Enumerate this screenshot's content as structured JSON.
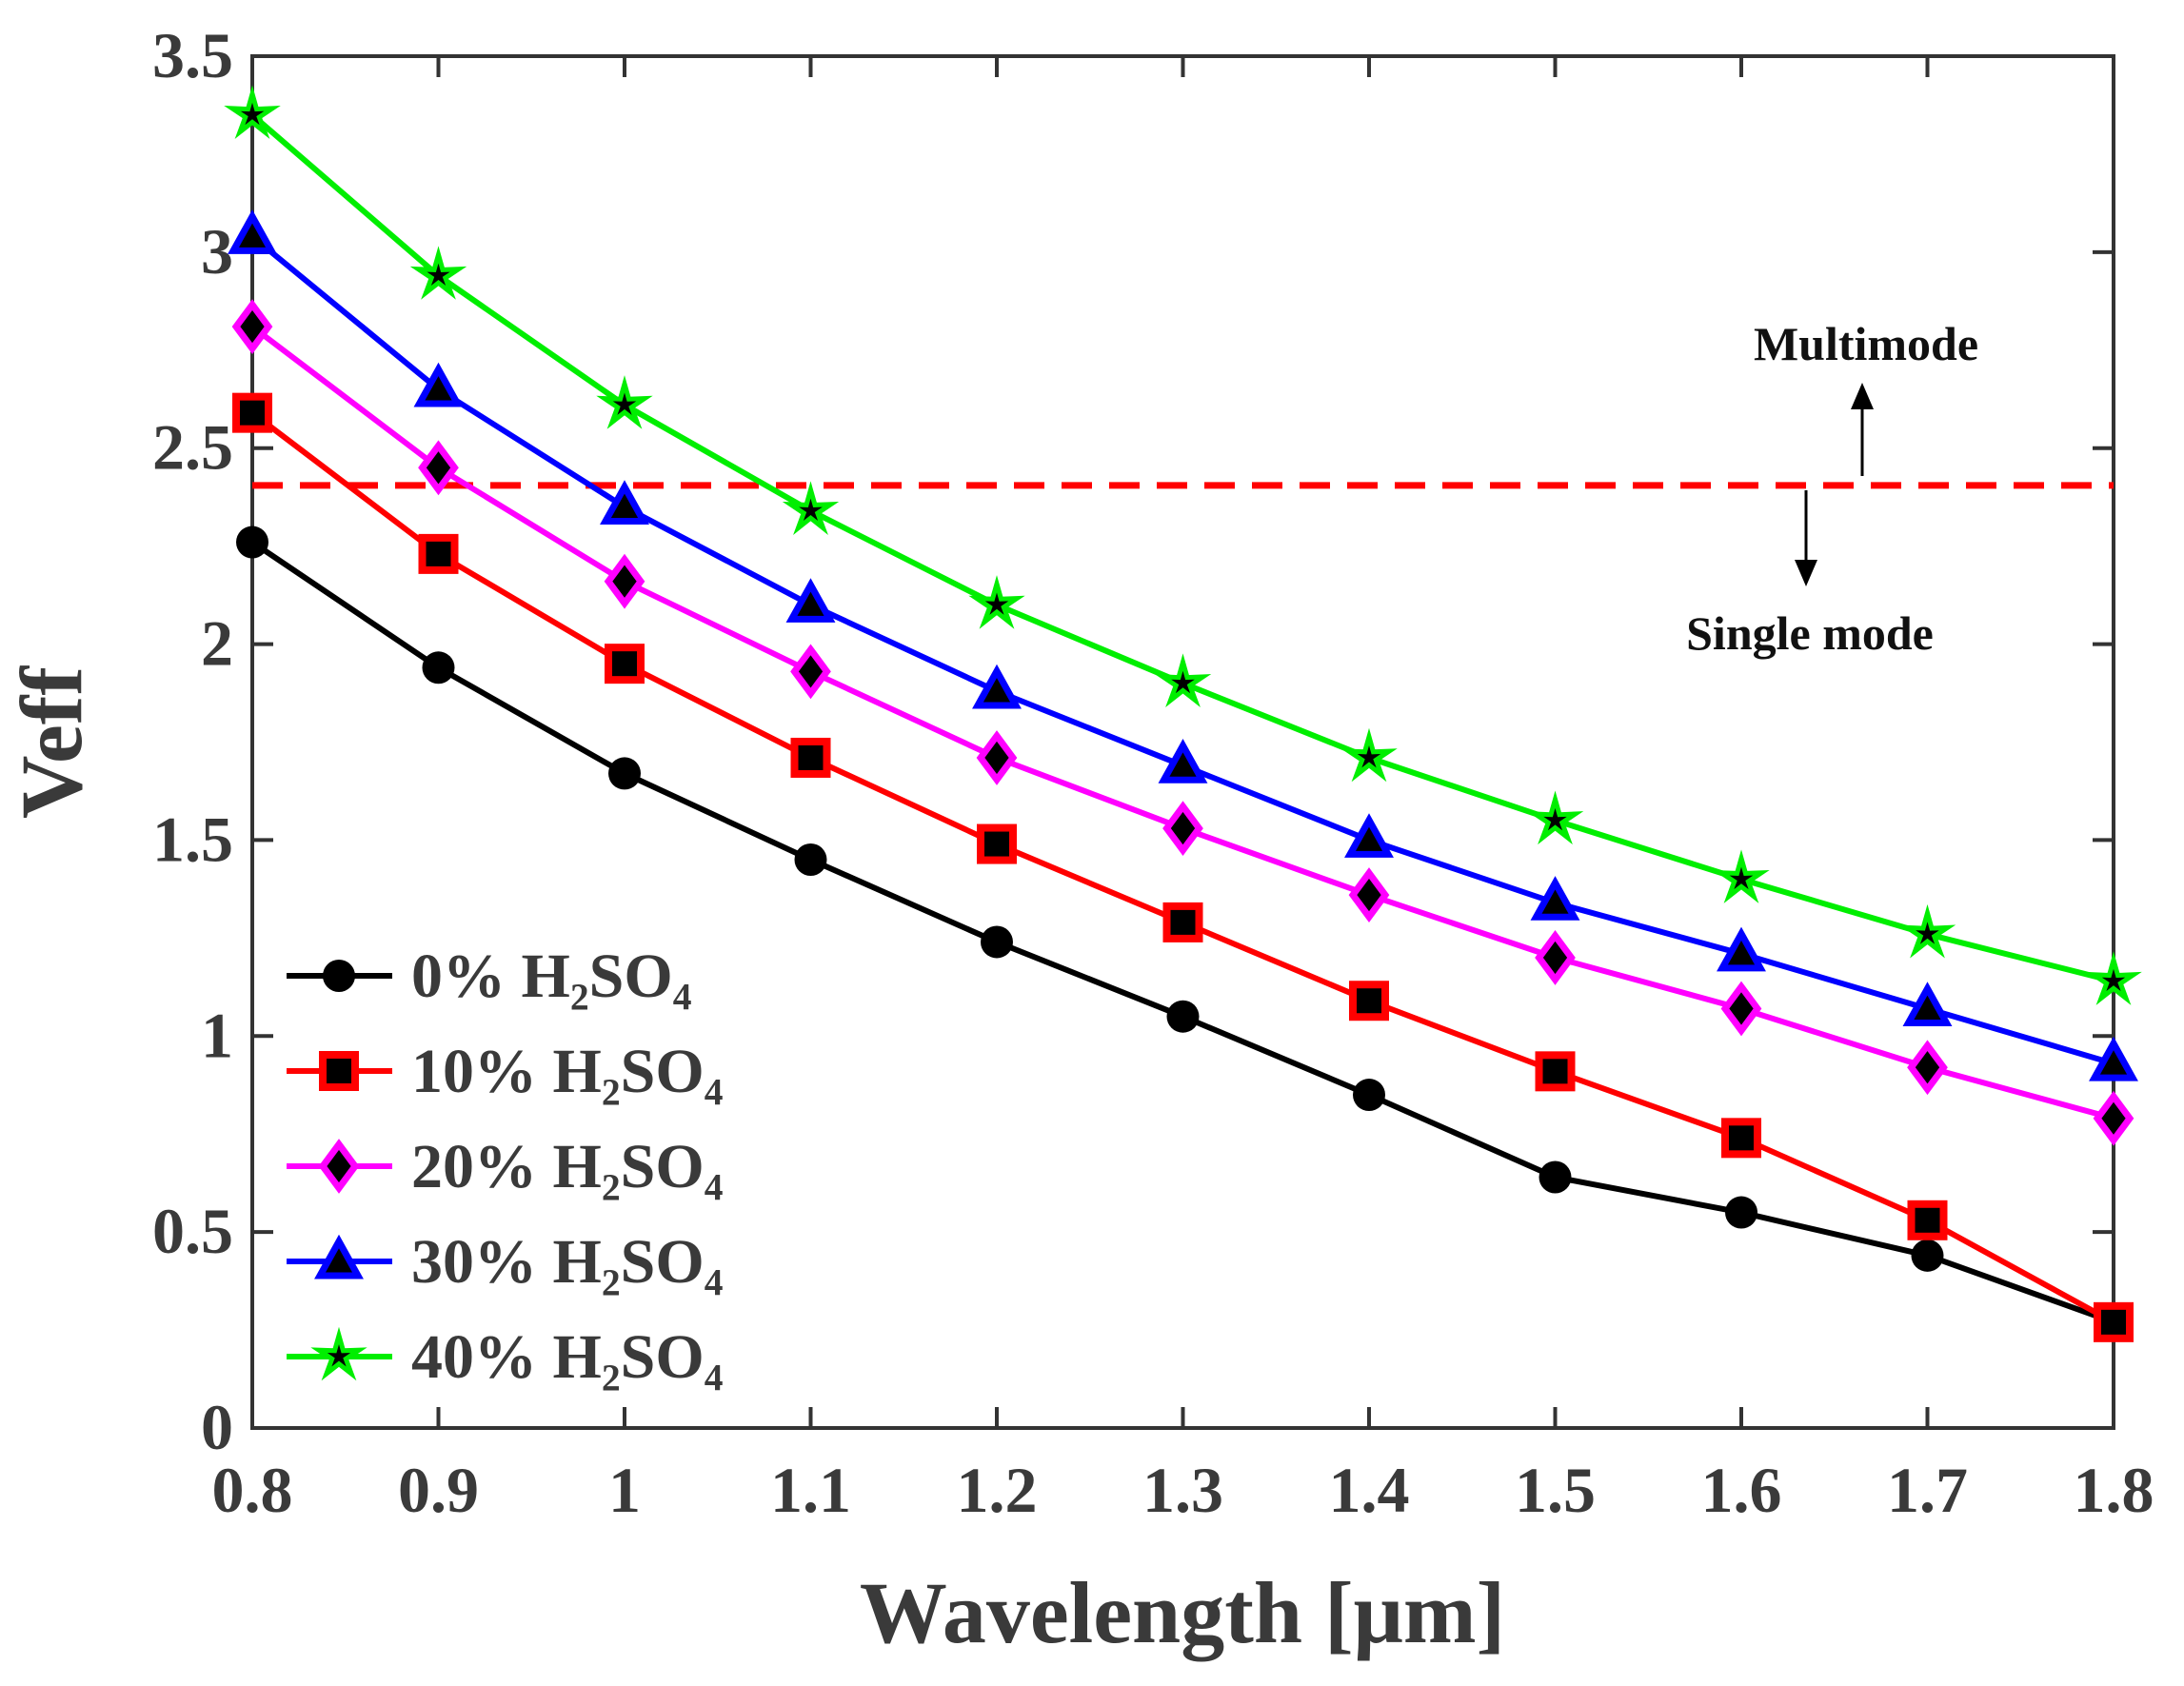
{
  "chart_data": {
    "type": "line",
    "title": "",
    "xlabel": "Wavelength [μm]",
    "ylabel": "Veff",
    "xlim": [
      0.8,
      1.8
    ],
    "ylim": [
      0,
      3.5
    ],
    "x_ticks": [
      "0.8",
      "0.9",
      "1",
      "1.1",
      "1.2",
      "1.3",
      "1.4",
      "1.5",
      "1.6",
      "1.7",
      "1.8"
    ],
    "y_ticks": [
      "0",
      "0.5",
      "1",
      "1.5",
      "2",
      "2.5",
      "3",
      "3.5"
    ],
    "x": [
      0.8,
      0.9,
      1.0,
      1.1,
      1.2,
      1.3,
      1.4,
      1.5,
      1.6,
      1.7,
      1.8
    ],
    "grid": false,
    "legend_position": "bottom-left",
    "series": [
      {
        "name": "0% H₂SO₄",
        "color": "#000000",
        "marker": "circle",
        "values": [
          2.26,
          1.94,
          1.67,
          1.45,
          1.24,
          1.05,
          0.85,
          0.64,
          0.55,
          0.44,
          0.27
        ]
      },
      {
        "name": "10% H₂SO₄",
        "color": "#ff0000",
        "marker": "square",
        "values": [
          2.59,
          2.23,
          1.95,
          1.71,
          1.49,
          1.29,
          1.09,
          0.91,
          0.74,
          0.53,
          0.27
        ]
      },
      {
        "name": "20% H₂SO₄",
        "color": "#ff00ff",
        "marker": "diamond",
        "values": [
          2.81,
          2.45,
          2.16,
          1.93,
          1.71,
          1.53,
          1.36,
          1.2,
          1.07,
          0.92,
          0.79
        ]
      },
      {
        "name": "30% H₂SO₄",
        "color": "#0000ff",
        "marker": "triangle",
        "values": [
          3.04,
          2.65,
          2.35,
          2.1,
          1.88,
          1.69,
          1.5,
          1.34,
          1.21,
          1.07,
          0.93
        ]
      },
      {
        "name": "40% H₂SO₄",
        "color": "#00ee00",
        "marker": "star",
        "values": [
          3.35,
          2.94,
          2.61,
          2.34,
          2.1,
          1.9,
          1.71,
          1.55,
          1.4,
          1.26,
          1.14
        ]
      }
    ],
    "cutoff_line": {
      "value": 2.405,
      "color": "#ff0000",
      "style": "dashed"
    },
    "annotations": {
      "multimode": "Multimode",
      "single_mode": "Single mode"
    }
  }
}
